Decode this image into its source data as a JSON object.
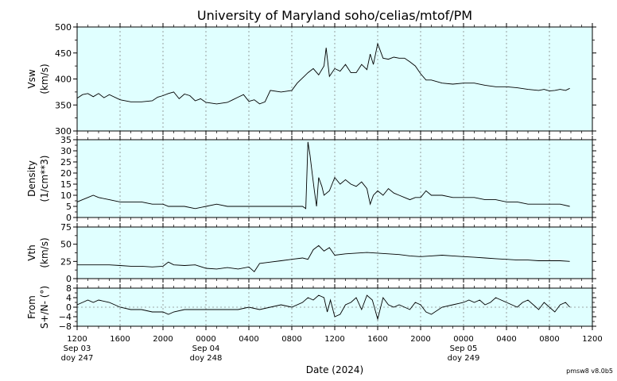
{
  "title": "University of Maryland  soho/celias/mtof/PM",
  "xlabel": "Date (2024)",
  "footnote": "pmsw8 v8.0b5",
  "colors": {
    "panel_bg": "#e0ffff",
    "trace": "#000000",
    "grid": "#888888"
  },
  "x_axis": {
    "range_hours": [
      0,
      48
    ],
    "ticks": [
      {
        "x": 0,
        "label": "1200"
      },
      {
        "x": 4,
        "label": "1600"
      },
      {
        "x": 8,
        "label": "2000"
      },
      {
        "x": 12,
        "label": "0000"
      },
      {
        "x": 16,
        "label": "0400"
      },
      {
        "x": 20,
        "label": "0800"
      },
      {
        "x": 24,
        "label": "1200"
      },
      {
        "x": 28,
        "label": "1600"
      },
      {
        "x": 32,
        "label": "2000"
      },
      {
        "x": 36,
        "label": "0000"
      },
      {
        "x": 40,
        "label": "0400"
      },
      {
        "x": 44,
        "label": "0800"
      },
      {
        "x": 48,
        "label": "1200"
      }
    ],
    "date_labels": [
      {
        "x": 0,
        "line1": "Sep 03",
        "line2": "doy 247"
      },
      {
        "x": 12,
        "line1": "Sep 04",
        "line2": "doy 248"
      },
      {
        "x": 36,
        "line1": "Sep 05",
        "line2": "doy 249"
      }
    ]
  },
  "chart_data": [
    {
      "type": "line",
      "ylabel": "Vsw",
      "yunit": "(km/s)",
      "ylim": [
        300,
        500
      ],
      "yticks": [
        300,
        350,
        400,
        450,
        500
      ],
      "grid": true,
      "x": [
        0,
        0.5,
        1,
        1.5,
        2,
        2.5,
        3,
        4,
        5,
        6,
        7,
        7.5,
        8,
        8.5,
        9,
        9.5,
        10,
        10.5,
        11,
        11.5,
        12,
        13,
        14,
        14.5,
        15,
        15.5,
        16,
        16.5,
        17,
        17.5,
        18,
        19,
        20,
        20.5,
        21,
        21.5,
        22,
        22.5,
        23,
        23.2,
        23.5,
        24,
        24.5,
        25,
        25.5,
        26,
        26.5,
        27,
        27.3,
        27.6,
        28,
        28.5,
        29,
        29.5,
        30,
        30.5,
        31,
        31.5,
        32,
        32.5,
        33,
        34,
        35,
        36,
        37,
        38,
        39,
        40,
        41,
        42,
        43,
        43.5,
        44,
        44.5,
        45,
        45.5,
        45.9
      ],
      "y": [
        363,
        370,
        372,
        366,
        372,
        364,
        370,
        360,
        356,
        356,
        358,
        365,
        368,
        372,
        375,
        362,
        371,
        368,
        358,
        362,
        355,
        352,
        355,
        360,
        365,
        370,
        357,
        360,
        352,
        356,
        378,
        375,
        378,
        392,
        402,
        412,
        420,
        408,
        425,
        460,
        405,
        420,
        415,
        428,
        412,
        412,
        428,
        418,
        448,
        428,
        468,
        440,
        438,
        442,
        440,
        440,
        433,
        425,
        410,
        398,
        398,
        392,
        390,
        392,
        392,
        388,
        385,
        385,
        383,
        380,
        378,
        380,
        377,
        378,
        380,
        378,
        382
      ]
    },
    {
      "type": "line",
      "ylabel": "Density",
      "yunit": "(1/cm**3)",
      "ylim": [
        0,
        35
      ],
      "yticks": [
        0,
        5,
        10,
        15,
        20,
        25,
        30,
        35
      ],
      "grid": true,
      "x": [
        0,
        0.5,
        1,
        1.5,
        2,
        3,
        4,
        5,
        6,
        7,
        7.5,
        8,
        8.5,
        9,
        10,
        11,
        12,
        13,
        14,
        15,
        16,
        17,
        18,
        19,
        20,
        21,
        21.3,
        21.5,
        21.7,
        21.9,
        22.1,
        22.3,
        22.5,
        22.8,
        23,
        23.5,
        24,
        24.5,
        25,
        25.5,
        26,
        26.5,
        27,
        27.3,
        27.6,
        28,
        28.5,
        29,
        29.5,
        30,
        30.5,
        31,
        31.5,
        32,
        32.5,
        33,
        34,
        35,
        36,
        37,
        38,
        39,
        40,
        41,
        42,
        43,
        44,
        45,
        45.9
      ],
      "y": [
        7,
        8,
        9,
        10,
        9,
        8,
        7,
        7,
        7,
        6,
        6,
        6,
        5,
        5,
        5,
        4,
        5,
        6,
        5,
        5,
        5,
        5,
        5,
        5,
        5,
        5,
        4,
        34,
        28,
        20,
        12,
        5,
        18,
        14,
        10,
        12,
        18,
        15,
        17,
        15,
        14,
        16,
        13,
        6,
        10,
        12,
        10,
        13,
        11,
        10,
        9,
        8,
        9,
        9,
        12,
        10,
        10,
        9,
        9,
        9,
        8,
        8,
        7,
        7,
        6,
        6,
        6,
        6,
        5
      ]
    },
    {
      "type": "line",
      "ylabel": "Vth",
      "yunit": "(km/s)",
      "ylim": [
        0,
        75
      ],
      "yticks": [
        0,
        25,
        50,
        75
      ],
      "grid": true,
      "x": [
        0,
        1,
        2,
        3,
        4,
        5,
        6,
        7,
        8,
        8.5,
        9,
        10,
        11,
        12,
        13,
        14,
        15,
        16,
        16.5,
        17,
        18,
        19,
        20,
        21,
        21.5,
        22,
        22.5,
        23,
        23.5,
        24,
        25,
        26,
        27,
        28,
        29,
        30,
        31,
        32,
        33,
        34,
        35,
        36,
        37,
        38,
        39,
        40,
        41,
        42,
        43,
        44,
        45,
        45.9
      ],
      "y": [
        20,
        20,
        20,
        20,
        19,
        18,
        18,
        17,
        18,
        24,
        20,
        19,
        20,
        15,
        14,
        16,
        14,
        17,
        10,
        22,
        24,
        26,
        28,
        30,
        28,
        42,
        48,
        40,
        45,
        34,
        36,
        37,
        38,
        37,
        36,
        35,
        33,
        32,
        33,
        34,
        33,
        32,
        31,
        30,
        29,
        28,
        27,
        27,
        26,
        26,
        26,
        25
      ]
    },
    {
      "type": "line",
      "ylabel": "From",
      "yunit": "S+/N- (°)",
      "ylim": [
        -8,
        8
      ],
      "yticks": [
        -8,
        -4,
        0,
        4,
        8
      ],
      "ytick_labels": [
        "−8",
        "−4",
        "0",
        "4",
        "8"
      ],
      "grid": true,
      "zero_line": true,
      "x": [
        0,
        0.5,
        1,
        1.5,
        2,
        3,
        4,
        5,
        6,
        7,
        8,
        8.5,
        9,
        10,
        11,
        12,
        13,
        14,
        15,
        16,
        17,
        18,
        19,
        20,
        21,
        21.5,
        22,
        22.5,
        23,
        23.3,
        23.6,
        24,
        24.5,
        25,
        25.5,
        26,
        26.5,
        27,
        27.5,
        28,
        28.5,
        29,
        29.5,
        30,
        30.5,
        31,
        31.5,
        32,
        32.5,
        33,
        34,
        35,
        36,
        36.5,
        37,
        37.5,
        38,
        38.5,
        39,
        39.5,
        40,
        40.5,
        41,
        41.5,
        42,
        42.5,
        43,
        43.5,
        44,
        44.5,
        45,
        45.5,
        45.9
      ],
      "y": [
        1,
        2,
        3,
        2,
        3,
        2,
        0,
        -1,
        -1,
        -2,
        -2,
        -3,
        -2,
        -1,
        -1,
        -1,
        -1,
        -1,
        -1,
        0,
        -1,
        0,
        1,
        0,
        2,
        4,
        3,
        5,
        4,
        -2,
        3,
        -4,
        -3,
        1,
        2,
        4,
        -1,
        5,
        3,
        -5,
        4,
        1,
        0,
        1,
        0,
        -1,
        2,
        1,
        -2,
        -3,
        0,
        1,
        2,
        3,
        2,
        3,
        1,
        2,
        4,
        3,
        2,
        1,
        0,
        2,
        3,
        1,
        -1,
        2,
        0,
        -2,
        1,
        2,
        0
      ]
    }
  ]
}
